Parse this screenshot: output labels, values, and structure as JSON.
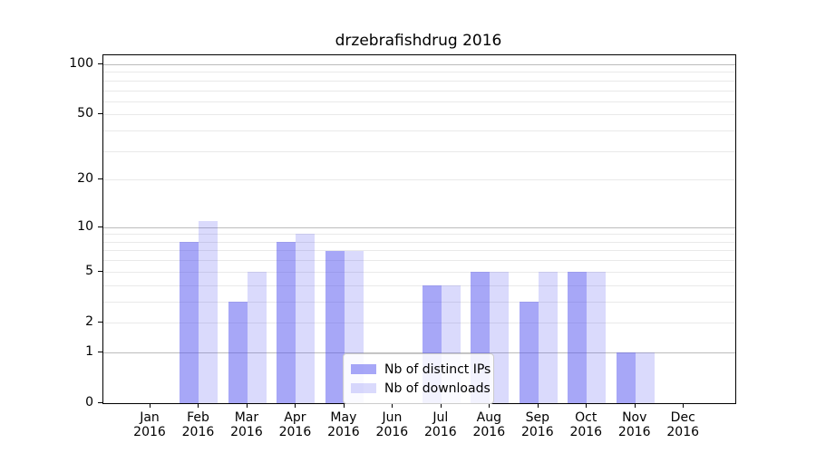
{
  "figure": {
    "background": "#ffffff"
  },
  "chart_data": {
    "type": "bar",
    "title": "drzebrafishdrug 2016",
    "categories": [
      "Jan 2016",
      "Feb 2016",
      "Mar 2016",
      "Apr 2016",
      "May 2016",
      "Jun 2016",
      "Jul 2016",
      "Aug 2016",
      "Sep 2016",
      "Oct 2016",
      "Nov 2016",
      "Dec 2016"
    ],
    "series": [
      {
        "name": "Nb of distinct IPs",
        "color": "rgba(80,80,240,0.5)",
        "values": [
          0,
          8,
          3,
          8,
          7,
          0,
          4,
          5,
          3,
          5,
          1,
          0
        ]
      },
      {
        "name": "Nb of downloads",
        "color": "rgba(80,80,240,0.21)",
        "values": [
          0,
          11,
          5,
          9,
          7,
          0,
          4,
          5,
          5,
          5,
          1,
          0
        ]
      }
    ],
    "xlabel": "",
    "ylabel": "",
    "yscale": "log1p",
    "ylim": [
      0,
      113
    ],
    "y_tick_values": [
      0,
      1,
      2,
      5,
      10,
      20,
      50,
      100
    ],
    "y_tick_labels": [
      "0",
      "1",
      "2",
      "5",
      "10",
      "20",
      "50",
      "100"
    ],
    "y_major_grid_values": [
      1,
      10,
      100
    ],
    "y_minor_grid_values": [
      2,
      3,
      4,
      5,
      6,
      7,
      8,
      9,
      20,
      30,
      40,
      50,
      60,
      70,
      80,
      90
    ],
    "grid": "on",
    "legend_position": "lower center",
    "legend_entries": [
      "Nb of distinct IPs",
      "Nb of downloads"
    ]
  }
}
